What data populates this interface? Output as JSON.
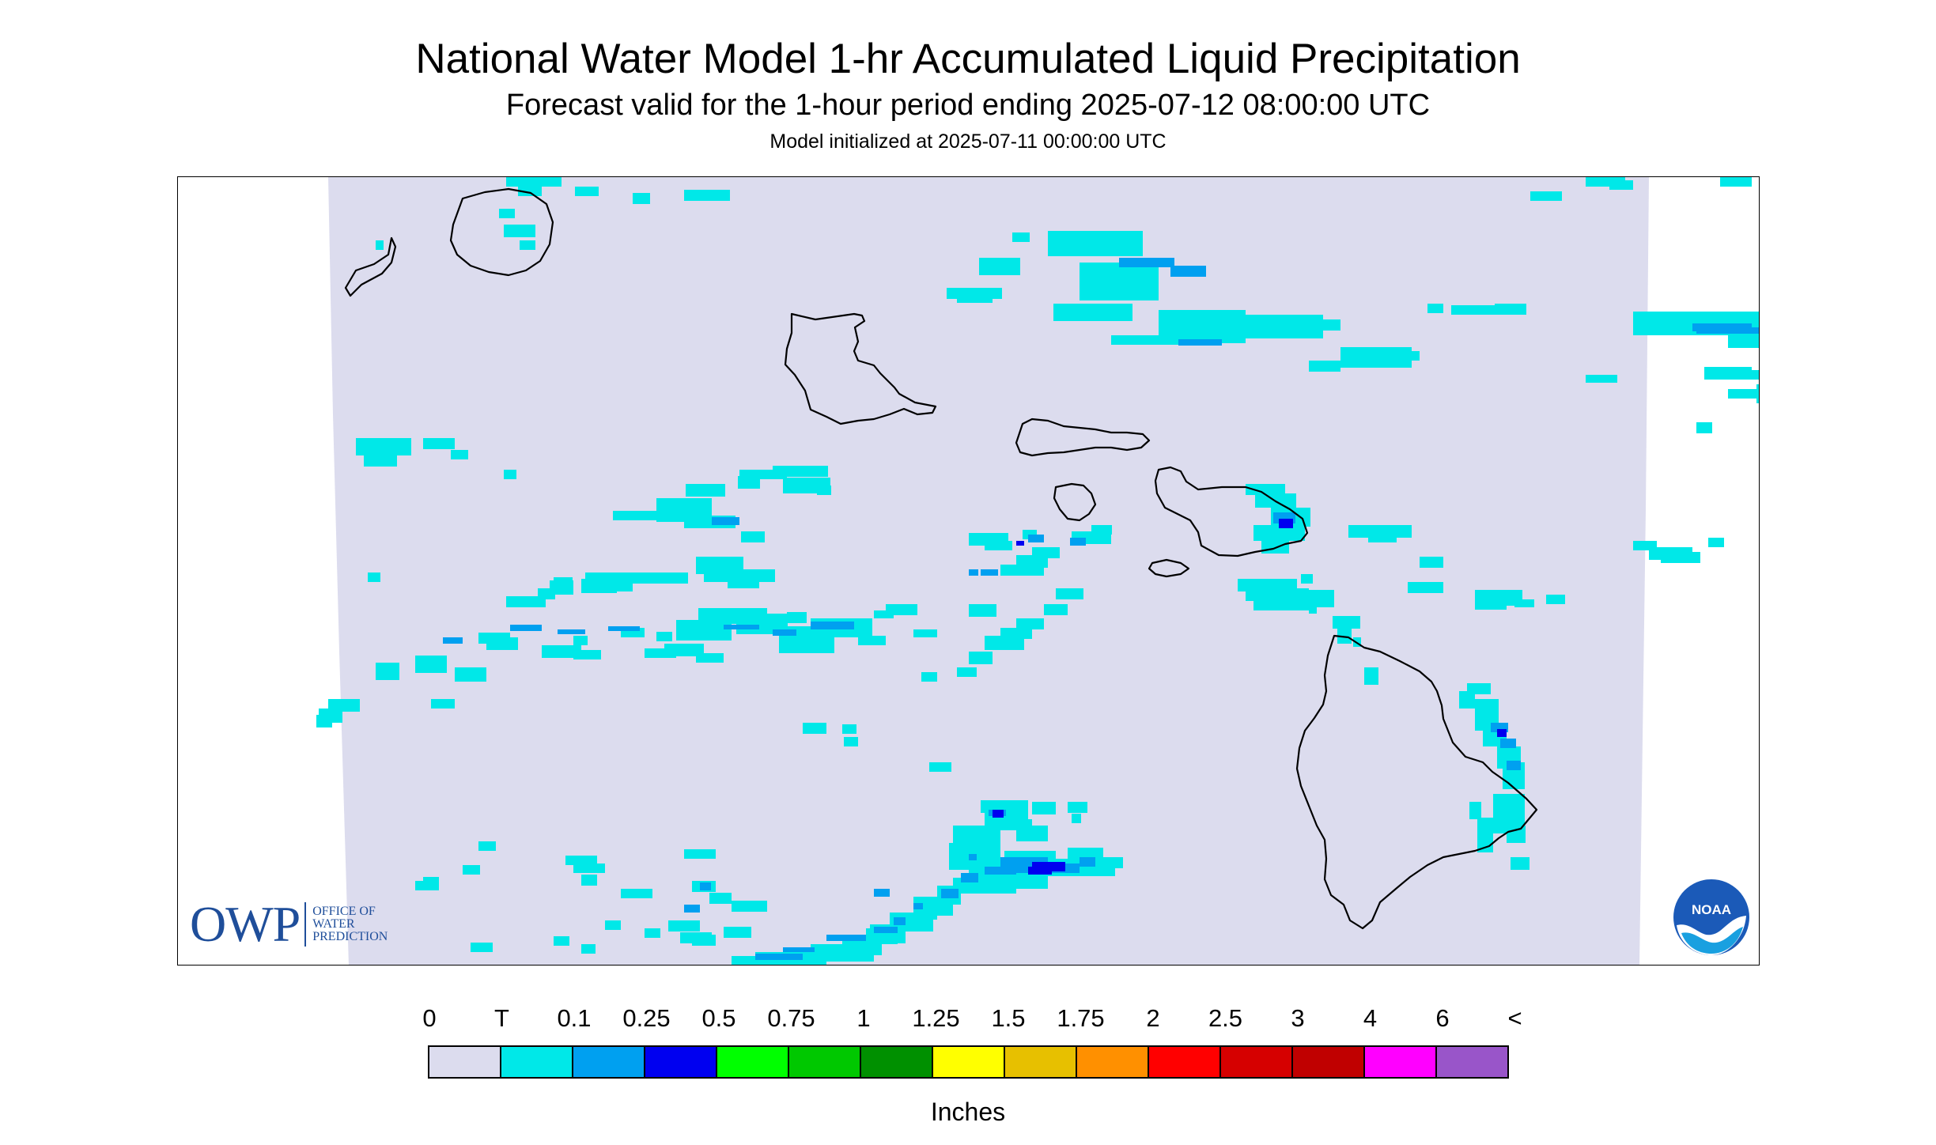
{
  "header": {
    "title": "National Water Model 1-hr Accumulated Liquid Precipitation",
    "subtitle": "Forecast valid for the 1-hour period ending 2025-07-12 08:00:00 UTC",
    "init_line": "Model initialized at 2025-07-11 00:00:00 UTC"
  },
  "logos": {
    "owp_mark": "OWP",
    "owp_sub": [
      "OFFICE OF",
      "WATER",
      "PREDICTION"
    ],
    "noaa_mark": "NOAA"
  },
  "legend": {
    "labels": [
      "0",
      "T",
      "0.1",
      "0.25",
      "0.5",
      "0.75",
      "1",
      "1.25",
      "1.5",
      "1.75",
      "2",
      "2.5",
      "3",
      "4",
      "6",
      "<"
    ],
    "colors": [
      "#dcdcee",
      "#00e8e8",
      "#00a0f0",
      "#0000f0",
      "#00ff00",
      "#00c800",
      "#009000",
      "#ffff00",
      "#e7c000",
      "#ff9000",
      "#ff0000",
      "#d60000",
      "#c00000",
      "#ff00ff",
      "#9955c9"
    ],
    "units": "Inches"
  },
  "map": {
    "domain_color": "#dcdcee",
    "coast_color": "#000000",
    "features": [
      "Kauai",
      "Niihau",
      "Oahu",
      "Molokai",
      "Lanai",
      "Maui",
      "Kahoolawe",
      "Hawaii"
    ]
  }
}
